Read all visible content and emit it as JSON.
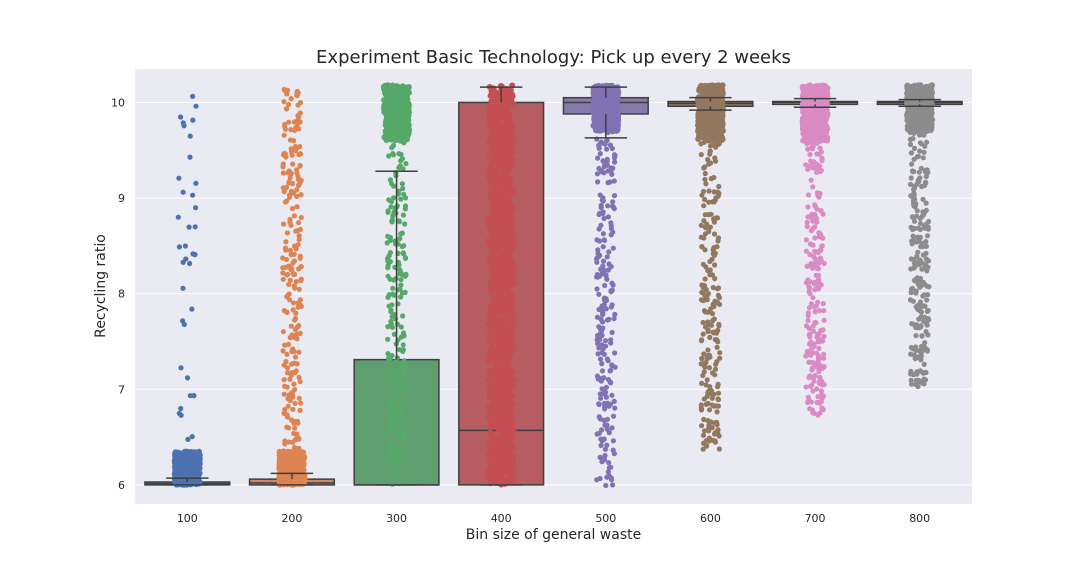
{
  "chart_data": {
    "type": "box",
    "title": "Experiment Basic Technology: Pick up every 2 weeks",
    "xlabel": "Bin size of general waste",
    "ylabel": "Recycling ratio",
    "categories": [
      "100",
      "200",
      "300",
      "400",
      "500",
      "600",
      "700",
      "800"
    ],
    "y_ticks": [
      "6",
      "7",
      "8",
      "9",
      "10"
    ],
    "ylim": [
      5.8,
      10.35
    ],
    "grid": true,
    "box_stats": [
      {
        "category": "100",
        "q1": 6.0,
        "median": 6.01,
        "q3": 6.03,
        "whisker_low": 6.0,
        "whisker_high": 6.07
      },
      {
        "category": "200",
        "q1": 6.0,
        "median": 6.02,
        "q3": 6.06,
        "whisker_low": 6.0,
        "whisker_high": 6.12
      },
      {
        "category": "300",
        "q1": 6.0,
        "median": 6.0,
        "q3": 7.31,
        "whisker_low": 6.0,
        "whisker_high": 9.28
      },
      {
        "category": "400",
        "q1": 6.0,
        "median": 6.57,
        "q3": 10.0,
        "whisker_low": 6.0,
        "whisker_high": 10.16
      },
      {
        "category": "500",
        "q1": 9.88,
        "median": 10.0,
        "q3": 10.05,
        "whisker_low": 9.63,
        "whisker_high": 10.16
      },
      {
        "category": "600",
        "q1": 9.96,
        "median": 9.99,
        "q3": 10.01,
        "whisker_low": 9.92,
        "whisker_high": 10.05
      },
      {
        "category": "700",
        "q1": 9.98,
        "median": 10.0,
        "q3": 10.01,
        "whisker_low": 9.95,
        "whisker_high": 10.04
      },
      {
        "category": "800",
        "q1": 9.98,
        "median": 10.0,
        "q3": 10.01,
        "whisker_low": 9.96,
        "whisker_high": 10.03
      }
    ],
    "strip_ranges": [
      {
        "category": "100",
        "min": 6.0,
        "max": 10.08,
        "dense_low": 6.0,
        "dense_high": 6.35
      },
      {
        "category": "200",
        "min": 6.0,
        "max": 10.18,
        "dense_low": 6.0,
        "dense_high": 6.35
      },
      {
        "category": "300",
        "min": 6.0,
        "max": 10.18,
        "dense_low": 9.6,
        "dense_high": 10.18
      },
      {
        "category": "400",
        "min": 6.0,
        "max": 10.18,
        "dense_low": 6.0,
        "dense_high": 10.18
      },
      {
        "category": "500",
        "min": 5.98,
        "max": 10.18,
        "dense_low": 9.7,
        "dense_high": 10.18
      },
      {
        "category": "600",
        "min": 6.37,
        "max": 10.18,
        "dense_low": 9.6,
        "dense_high": 10.18
      },
      {
        "category": "700",
        "min": 6.72,
        "max": 10.18,
        "dense_low": 9.6,
        "dense_high": 10.18
      },
      {
        "category": "800",
        "min": 7.02,
        "max": 10.18,
        "dense_low": 9.7,
        "dense_high": 10.18
      }
    ],
    "colors": {
      "box_fill": [
        "#5975a4",
        "#cc8963",
        "#5f9e6e",
        "#b55d60",
        "#857aab",
        "#8d7866",
        "#d095bf",
        "#8c8c8c"
      ],
      "points": [
        "#4c72b0",
        "#dd8452",
        "#55a868",
        "#c44e52",
        "#8172b3",
        "#937860",
        "#da8bc3",
        "#8c8c8c"
      ],
      "box_edge": "#3f3f3f",
      "plot_background": "#eaeaf2",
      "grid": "#ffffff"
    }
  }
}
